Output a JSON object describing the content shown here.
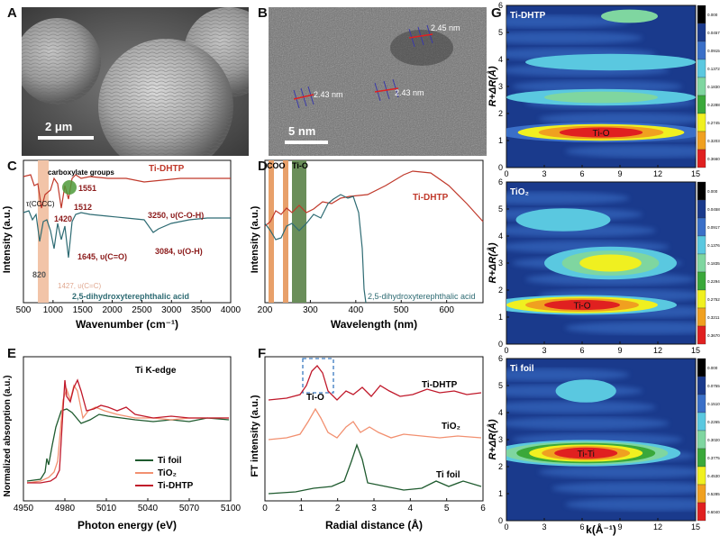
{
  "labels": {
    "A": "A",
    "B": "B",
    "C": "C",
    "D": "D",
    "E": "E",
    "F": "F",
    "G": "G"
  },
  "panelA": {
    "scale_bar": "2 μm"
  },
  "panelB": {
    "scale_bar": "5 nm",
    "fringes": [
      "2.43 nm",
      "2.43 nm",
      "2.45 nm"
    ]
  },
  "panelC": {
    "xlabel": "Wavenumber (cm⁻¹)",
    "ylabel": "Intensity (a.u.)",
    "xticks": [
      "500",
      "1000",
      "1500",
      "2000",
      "2500",
      "3000",
      "3500",
      "4000"
    ],
    "xlim": [
      500,
      4000
    ],
    "series_names": [
      "Ti-DHTP",
      "2,5-dihydroxyterephthalic acid"
    ],
    "annotations": {
      "carboxylate": "carboxylate groups",
      "tau": "τ(CCCC)",
      "a1551": "1551",
      "a1512": "1512",
      "a1420": "1420",
      "a3250": "3250, υ(C-O-H)",
      "a1645": "1645, υ(C=O)",
      "a3084": "3084, υ(O-H)",
      "a820": "820",
      "a1427": "1427, υ(C=C)"
    },
    "colors": {
      "tidhtp": "#c0392b",
      "acid": "#2e6b73",
      "highlight": "#f2c4a8",
      "circle": "#4e9a3a"
    }
  },
  "panelD": {
    "xlabel": "Wavelength (nm)",
    "ylabel": "Intensity (a.u.)",
    "xticks": [
      "200",
      "300",
      "400",
      "500",
      "600"
    ],
    "xlim": [
      200,
      680
    ],
    "series_names": [
      "Ti-DHTP",
      "2,5-dihydroxyterephthalic acid"
    ],
    "annotations": {
      "coo": "COO",
      "tio": "Ti-O"
    },
    "colors": {
      "tidhtp": "#c0392b",
      "acid": "#2e6b73",
      "coo": "#e8a06a",
      "tio": "#6a8e5a"
    }
  },
  "panelE": {
    "xlabel": "Photon energy (eV)",
    "ylabel": "Normalized absorption (a.u.)",
    "xticks": [
      "4950",
      "4980",
      "5010",
      "5040",
      "5070",
      "5100"
    ],
    "xlim": [
      4950,
      5100
    ],
    "edge_label": "Ti K-edge",
    "legend": [
      "Ti foil",
      "TiO₂",
      "Ti-DHTP"
    ],
    "colors": {
      "foil": "#1e5a2e",
      "tio2": "#f29070",
      "tidhtp": "#c0182a"
    }
  },
  "panelF": {
    "xlabel": "Radial distance (Å)",
    "ylabel": "FT intensity (a.u.)",
    "xticks": [
      "0",
      "1",
      "2",
      "3",
      "4",
      "5",
      "6"
    ],
    "xlim": [
      0,
      6
    ],
    "series_labels": [
      "Ti-DHTP",
      "TiO₂",
      "Ti foil"
    ],
    "peak_label": "Ti-O",
    "colors": {
      "foil": "#1e5a2e",
      "tio2": "#f29070",
      "tidhtp": "#c0182a",
      "box": "#3a7ac0"
    }
  },
  "panelG": {
    "xlabel": "k(Å⁻¹)",
    "ylabel": "R+ΔR(Å)",
    "xticks": [
      "0",
      "3",
      "6",
      "9",
      "12",
      "15"
    ],
    "yticks": [
      "0",
      "1",
      "2",
      "3",
      "4",
      "5",
      "6"
    ],
    "maps": [
      {
        "title": "Ti-DHTP",
        "peak": "Ti-O",
        "cbar": [
          "0.000",
          "0.04575",
          "0.09150",
          "0.1372",
          "0.1830",
          "0.2288",
          "0.2745",
          "0.3203",
          "0.3660"
        ]
      },
      {
        "title": "TiO₂",
        "peak": "Ti-O",
        "cbar": [
          "0.000",
          "0.04587",
          "0.09175",
          "0.1376",
          "0.1835",
          "0.2294",
          "0.2752",
          "0.3211",
          "0.3670"
        ]
      },
      {
        "title": "Ti foil",
        "peak": "Ti-Ti",
        "cbar": [
          "0.000",
          "0.07550",
          "0.1510",
          "0.2265",
          "0.3020",
          "0.3775",
          "0.4530",
          "0.5285",
          "0.6040"
        ]
      }
    ],
    "cbar_colors": [
      "#000000",
      "#1a3a8c",
      "#3a6fc8",
      "#5ac8e0",
      "#7fd6a0",
      "#3aa83a",
      "#f0f020",
      "#f0a020",
      "#e02020"
    ]
  }
}
